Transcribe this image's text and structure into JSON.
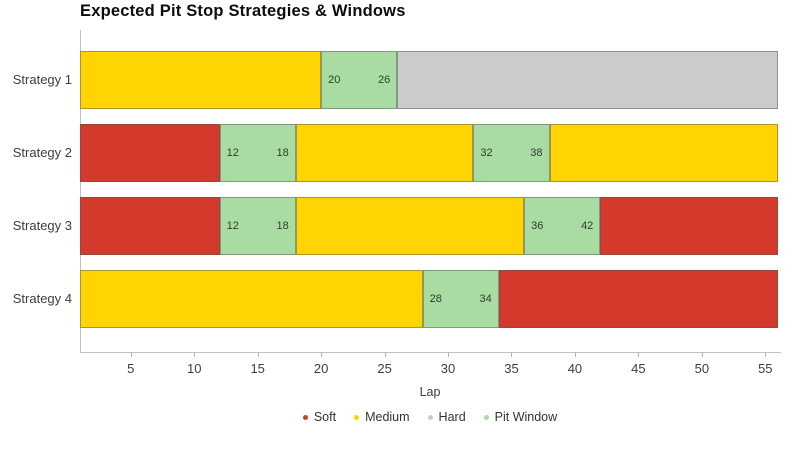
{
  "chart_data": {
    "type": "bar",
    "subtype": "horizontal-stacked-gantt",
    "title": "Expected Pit Stop Strategies & Windows",
    "xlabel": "Lap",
    "xlim": [
      1,
      56
    ],
    "x_ticks": [
      5,
      10,
      15,
      20,
      25,
      30,
      35,
      40,
      45,
      50,
      55
    ],
    "categories": [
      "Strategy 1",
      "Strategy 2",
      "Strategy 3",
      "Strategy 4"
    ],
    "legend": [
      "Soft",
      "Medium",
      "Hard",
      "Pit Window"
    ],
    "legend_position": "bottom-center",
    "grid": false,
    "colors": {
      "Soft": "#d43a2b",
      "Medium": "#ffd402",
      "Hard": "#c9cccb",
      "Pit Window": "#a9dca2",
      "pit_label_text": "#2f3e2f"
    },
    "rows": [
      {
        "label": "Strategy 1",
        "segments": [
          {
            "kind": "stint",
            "compound": "Medium",
            "start": 1,
            "end": 20
          },
          {
            "kind": "pit_window",
            "start": 20,
            "end": 26,
            "start_label": "20",
            "end_label": "26"
          },
          {
            "kind": "stint",
            "compound": "Hard",
            "start": 26,
            "end": 56
          }
        ]
      },
      {
        "label": "Strategy 2",
        "segments": [
          {
            "kind": "stint",
            "compound": "Soft",
            "start": 1,
            "end": 12
          },
          {
            "kind": "pit_window",
            "start": 12,
            "end": 18,
            "start_label": "12",
            "end_label": "18"
          },
          {
            "kind": "stint",
            "compound": "Medium",
            "start": 18,
            "end": 32
          },
          {
            "kind": "pit_window",
            "start": 32,
            "end": 38,
            "start_label": "32",
            "end_label": "38"
          },
          {
            "kind": "stint",
            "compound": "Medium",
            "start": 38,
            "end": 56
          }
        ]
      },
      {
        "label": "Strategy 3",
        "segments": [
          {
            "kind": "stint",
            "compound": "Soft",
            "start": 1,
            "end": 12
          },
          {
            "kind": "pit_window",
            "start": 12,
            "end": 18,
            "start_label": "12",
            "end_label": "18"
          },
          {
            "kind": "stint",
            "compound": "Medium",
            "start": 18,
            "end": 36
          },
          {
            "kind": "pit_window",
            "start": 36,
            "end": 42,
            "start_label": "36",
            "end_label": "42"
          },
          {
            "kind": "stint",
            "compound": "Soft",
            "start": 42,
            "end": 56
          }
        ]
      },
      {
        "label": "Strategy 4",
        "segments": [
          {
            "kind": "stint",
            "compound": "Medium",
            "start": 1,
            "end": 28
          },
          {
            "kind": "pit_window",
            "start": 28,
            "end": 34,
            "start_label": "28",
            "end_label": "34"
          },
          {
            "kind": "stint",
            "compound": "Soft",
            "start": 34,
            "end": 56
          }
        ]
      }
    ]
  }
}
